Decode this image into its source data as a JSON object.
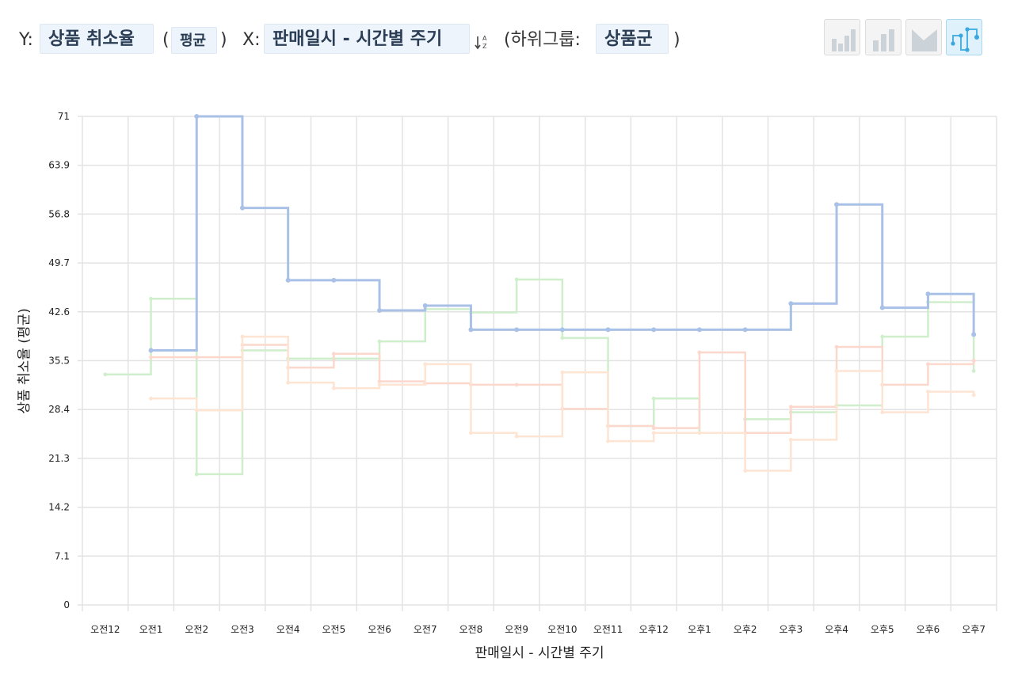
{
  "toolbar": {
    "y_prefix": "Y:",
    "y_field": "상품 취소율",
    "agg_open": "(",
    "agg": "평균",
    "agg_close": ")",
    "x_prefix": "X:",
    "x_field": "판매일시 - 시간별 주기",
    "sort_icon": "sort-az-icon",
    "subgroup_prefix": "(하위그룹:",
    "subgroup": "상품군",
    "subgroup_close": ")",
    "chart_types": [
      {
        "icon": "bar-chart-icon",
        "active": false
      },
      {
        "icon": "column-chart-icon",
        "active": false
      },
      {
        "icon": "area-chart-icon",
        "active": false
      },
      {
        "icon": "step-line-chart-icon",
        "active": true
      }
    ]
  },
  "chart_data": {
    "type": "line",
    "style": "step",
    "xlabel": "판매일시 - 시간별 주기",
    "ylabel": "상품 취소율 (평균)",
    "ylim": [
      0,
      71
    ],
    "y_ticks": [
      "0",
      "7.1",
      "14.2",
      "21.3",
      "28.4",
      "35.5",
      "42.6",
      "49.7",
      "56.8",
      "63.9",
      "71"
    ],
    "categories": [
      "오전12",
      "오전1",
      "오전2",
      "오전3",
      "오전4",
      "오전5",
      "오전6",
      "오전7",
      "오전8",
      "오전9",
      "오전10",
      "오전11",
      "오후12",
      "오후1",
      "오후2",
      "오후3",
      "오후4",
      "오후5",
      "오후6",
      "오후7"
    ],
    "grid": true,
    "series": [
      {
        "color": "#a9c1e6",
        "emphasis": true,
        "values": [
          null,
          37,
          71,
          57.7,
          47.2,
          47.2,
          42.8,
          43.5,
          40,
          40,
          40,
          40,
          40,
          40,
          40,
          43.8,
          58.2,
          43.2,
          45.2,
          39.3
        ]
      },
      {
        "color": "#cfeecb",
        "emphasis": false,
        "values": [
          33.5,
          44.5,
          19,
          37,
          35.8,
          35.8,
          38.3,
          43,
          42.5,
          47.3,
          38.8,
          26,
          30,
          25,
          27,
          28,
          29,
          39,
          44,
          34
        ]
      },
      {
        "color": "#fcd8cc",
        "emphasis": false,
        "values": [
          null,
          36,
          36,
          37.8,
          34.5,
          36.5,
          32.5,
          32.2,
          32,
          32,
          28.5,
          26,
          25.7,
          36.7,
          25,
          28.8,
          37.5,
          32,
          35,
          35.5
        ]
      },
      {
        "color": "#fde4d3",
        "emphasis": false,
        "values": [
          null,
          30,
          28.3,
          39,
          32.3,
          31.5,
          32,
          35,
          25,
          24.5,
          33.8,
          23.8,
          25,
          25,
          19.5,
          24,
          34,
          28,
          31,
          30.5
        ]
      }
    ]
  }
}
